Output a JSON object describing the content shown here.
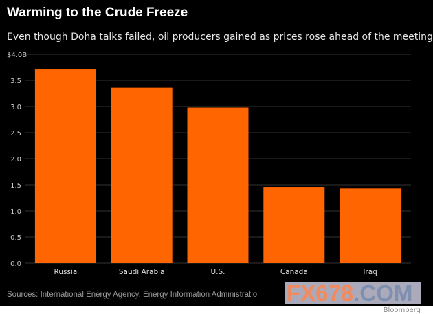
{
  "chart_data": {
    "type": "bar",
    "title": "Warming to the Crude Freeze",
    "subtitle": "Even though Doha talks failed, oil producers gained as prices rose ahead of the meeting",
    "categories": [
      "Russia",
      "Saudi Arabia",
      "U.S.",
      "Canada",
      "Iraq"
    ],
    "values": [
      3.71,
      3.36,
      2.98,
      1.46,
      1.43
    ],
    "unit": "$ billions",
    "ylim": [
      0,
      4.0
    ],
    "yticks": [
      0,
      0.5,
      1.0,
      1.5,
      2.0,
      2.5,
      3.0,
      3.5,
      4.0
    ],
    "ytick_labels": [
      "0.0",
      "0.5",
      "1.0",
      "1.5",
      "2.0",
      "2.5",
      "3.0",
      "3.5",
      "$4.0B"
    ],
    "xlabel": "",
    "ylabel": "",
    "grid": true,
    "bar_color": "#ff6500",
    "source": "Sources: International Energy Agency, Energy Information Administratio"
  },
  "watermark": {
    "main": "FX678",
    "suffix": ".COM",
    "logo": "Bloomberg"
  }
}
